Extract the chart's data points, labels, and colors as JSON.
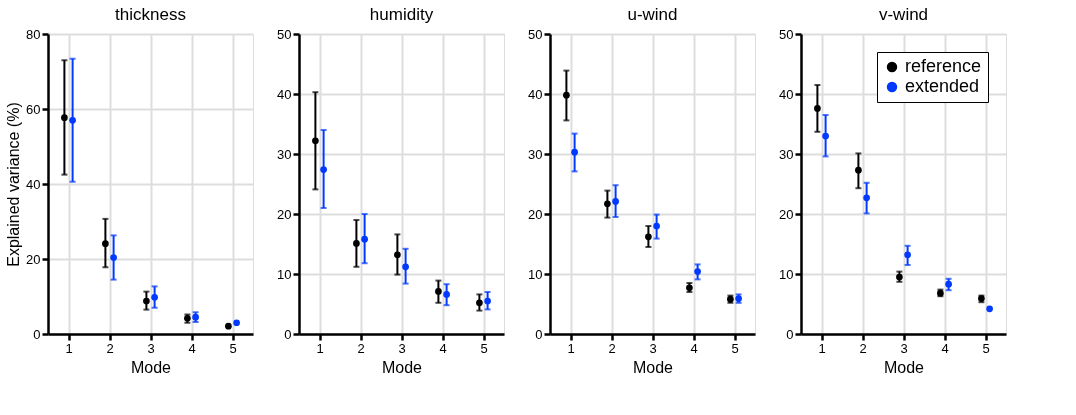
{
  "chart_data": [
    {
      "type": "scatter",
      "title": "thickness",
      "xlabel": "Mode",
      "ylabel": "Explained variance (%)",
      "xlim": [
        0.5,
        5.5
      ],
      "xticks": [
        1,
        2,
        3,
        4,
        5
      ],
      "ylim": [
        0,
        80
      ],
      "yticks": [
        0,
        20,
        40,
        60,
        80
      ],
      "grid": true,
      "marker": "circle",
      "series": [
        {
          "color": "#000000",
          "x": [
            0.9,
            1.9,
            2.9,
            3.9,
            4.9
          ],
          "values": [
            57.7,
            24.1,
            8.8,
            4.2,
            2.1
          ],
          "errors": [
            [
              42.5,
              73.0
            ],
            [
              17.8,
              30.7
            ],
            [
              6.5,
              11.3
            ],
            [
              3.0,
              5.2
            ],
            null
          ]
        },
        {
          "color": "#0039ff",
          "x": [
            1.1,
            2.1,
            3.1,
            4.1,
            5.1
          ],
          "values": [
            57.0,
            20.4,
            9.8,
            4.5,
            3.0
          ],
          "errors": [
            [
              40.6,
              73.4
            ],
            [
              14.5,
              26.3
            ],
            [
              7.0,
              12.7
            ],
            [
              3.2,
              5.8
            ],
            null
          ]
        }
      ]
    },
    {
      "type": "scatter",
      "title": "humidity",
      "xlabel": "Mode",
      "xlim": [
        0.5,
        5.5
      ],
      "xticks": [
        1,
        2,
        3,
        4,
        5
      ],
      "ylim": [
        0,
        50
      ],
      "yticks": [
        0,
        10,
        20,
        30,
        40,
        50
      ],
      "grid": true,
      "marker": "circle",
      "series": [
        {
          "color": "#000000",
          "x": [
            0.9,
            1.9,
            2.9,
            3.9,
            4.9
          ],
          "values": [
            32.2,
            15.1,
            13.2,
            7.1,
            5.2
          ],
          "errors": [
            [
              24.1,
              40.3
            ],
            [
              11.2,
              19.0
            ],
            [
              9.9,
              16.6
            ],
            [
              5.2,
              8.9
            ],
            [
              3.9,
              6.6
            ]
          ]
        },
        {
          "color": "#0039ff",
          "x": [
            1.1,
            2.1,
            3.1,
            4.1,
            5.1
          ],
          "values": [
            27.4,
            15.8,
            11.2,
            6.6,
            5.5
          ],
          "errors": [
            [
              21.0,
              34.0
            ],
            [
              11.8,
              20.0
            ],
            [
              8.4,
              14.2
            ],
            [
              4.8,
              8.3
            ],
            [
              4.1,
              7.0
            ]
          ]
        }
      ]
    },
    {
      "type": "scatter",
      "title": "u-wind",
      "xlabel": "Mode",
      "xlim": [
        0.5,
        5.5
      ],
      "xticks": [
        1,
        2,
        3,
        4,
        5
      ],
      "ylim": [
        0,
        50
      ],
      "yticks": [
        0,
        10,
        20,
        30,
        40,
        50
      ],
      "grid": true,
      "marker": "circle",
      "series": [
        {
          "color": "#000000",
          "x": [
            0.9,
            1.9,
            2.9,
            3.9,
            4.9
          ],
          "values": [
            39.8,
            21.7,
            16.2,
            7.7,
            5.8
          ],
          "errors": [
            [
              35.6,
              43.9
            ],
            [
              19.4,
              23.9
            ],
            [
              14.5,
              18.0
            ],
            [
              7.0,
              8.5
            ],
            [
              5.2,
              6.4
            ]
          ]
        },
        {
          "color": "#0039ff",
          "x": [
            1.1,
            2.1,
            3.1,
            4.1,
            5.1
          ],
          "values": [
            30.3,
            22.1,
            18.0,
            10.4,
            5.9
          ],
          "errors": [
            [
              27.1,
              33.4
            ],
            [
              19.5,
              24.8
            ],
            [
              15.9,
              19.9
            ],
            [
              9.1,
              11.6
            ],
            [
              5.2,
              6.6
            ]
          ]
        }
      ]
    },
    {
      "type": "scatter",
      "title": "v-wind",
      "xlabel": "Mode",
      "xlim": [
        0.5,
        5.5
      ],
      "xticks": [
        1,
        2,
        3,
        4,
        5
      ],
      "ylim": [
        0,
        50
      ],
      "yticks": [
        0,
        10,
        20,
        30,
        40,
        50
      ],
      "grid": true,
      "marker": "circle",
      "legend": "top right",
      "series": [
        {
          "name": "reference",
          "color": "#000000",
          "x": [
            0.9,
            1.9,
            2.9,
            3.9,
            4.9
          ],
          "values": [
            37.6,
            27.3,
            9.5,
            6.8,
            5.9
          ],
          "errors": [
            [
              33.7,
              41.5
            ],
            [
              24.3,
              30.1
            ],
            [
              8.7,
              10.4
            ],
            [
              6.3,
              7.4
            ],
            [
              5.3,
              6.4
            ]
          ]
        },
        {
          "name": "extended",
          "color": "#0039ff",
          "x": [
            1.1,
            2.1,
            3.1,
            4.1,
            5.1
          ],
          "values": [
            33.0,
            22.7,
            13.2,
            8.3,
            4.2
          ],
          "errors": [
            [
              29.6,
              36.5
            ],
            [
              20.1,
              25.2
            ],
            [
              11.5,
              14.7
            ],
            [
              7.3,
              9.2
            ],
            null
          ]
        }
      ]
    }
  ]
}
